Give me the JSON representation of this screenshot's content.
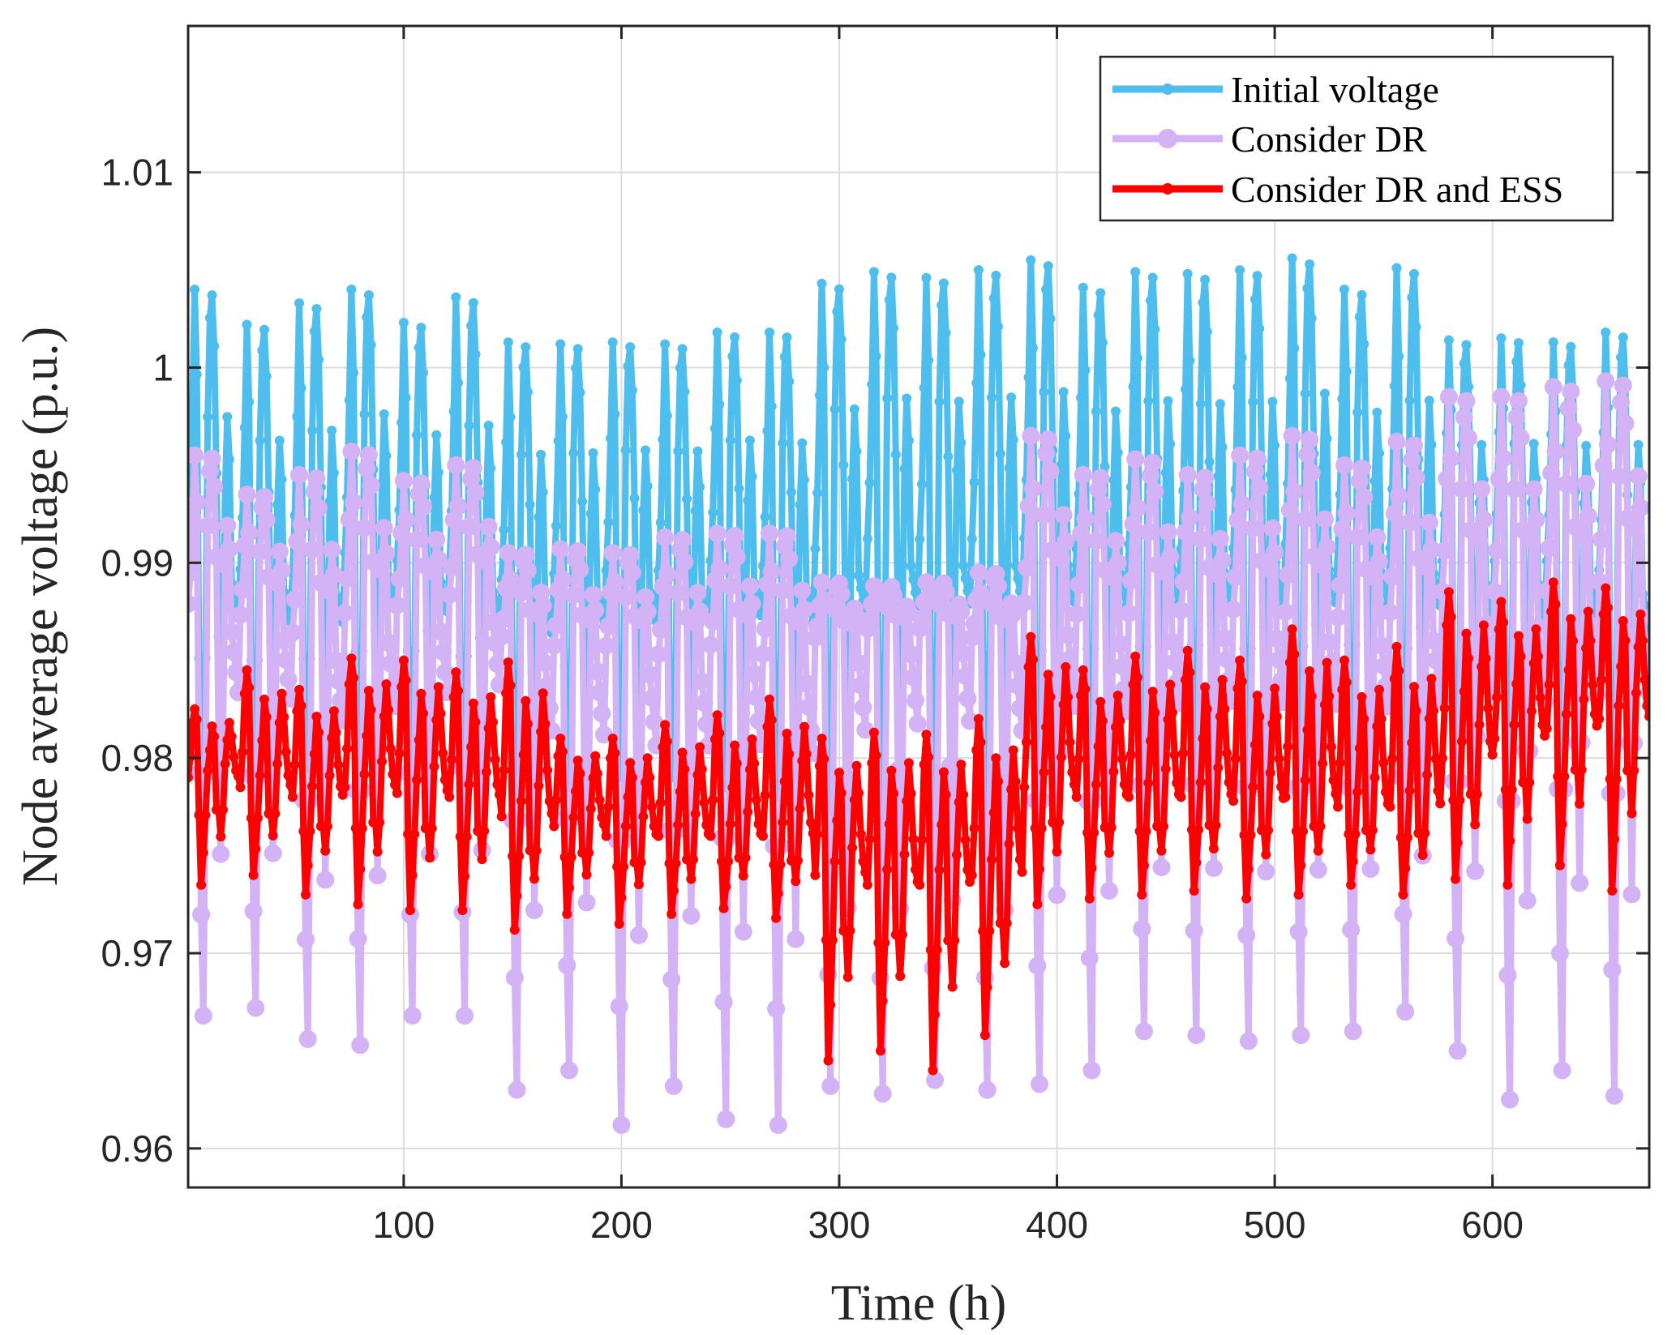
{
  "chart_data": {
    "type": "line",
    "title": "",
    "xlabel": "Time (h)",
    "ylabel": "Node average voltage (p.u.)",
    "xlim": [
      1,
      672
    ],
    "ylim": [
      0.958,
      1.0175
    ],
    "xticks": [
      100,
      200,
      300,
      400,
      500,
      600
    ],
    "xtick_labels": [
      "100",
      "200",
      "300",
      "400",
      "500",
      "600"
    ],
    "yticks": [
      0.96,
      0.97,
      0.98,
      0.99,
      1.0,
      1.01
    ],
    "ytick_labels": [
      "0.96",
      "0.97",
      "0.98",
      "0.99",
      "1",
      "1.01"
    ],
    "grid": true,
    "legend_position": "top-right",
    "period_hours": 24,
    "series": [
      {
        "name": "Initial voltage",
        "color": "#4dbeee",
        "marker": "hexagram",
        "daily_peaks": [
          1.004,
          1.0022,
          1.0033,
          1.004,
          1.0023,
          1.0036,
          1.0013,
          1.0012,
          1.0013,
          1.0012,
          1.0018,
          1.0018,
          1.0043,
          1.0049,
          1.0046,
          1.005,
          1.0055,
          1.0041,
          1.0049,
          1.0048,
          1.005,
          1.0056,
          1.004,
          1.0051,
          1.0014,
          1.0015,
          1.0013,
          1.0018
        ],
        "daily_base": [
          0.9895,
          0.989,
          0.9888,
          0.9898,
          0.9895,
          0.989,
          0.9885,
          0.9888,
          0.989,
          0.989,
          0.9895,
          0.9892,
          0.99,
          0.9905,
          0.9905,
          0.9905,
          0.9905,
          0.99,
          0.9902,
          0.99,
          0.99,
          0.9902,
          0.99,
          0.99,
          0.9895,
          0.9895,
          0.9895,
          0.989
        ],
        "daily_mins": [
          0.9785,
          0.979,
          0.9795,
          0.979,
          0.9795,
          0.9795,
          0.978,
          0.9785,
          0.979,
          0.979,
          0.9785,
          0.978,
          0.977,
          0.977,
          0.9775,
          0.9775,
          0.978,
          0.979,
          0.979,
          0.9795,
          0.979,
          0.979,
          0.9795,
          0.979,
          0.9775,
          0.978,
          0.9775,
          0.977
        ]
      },
      {
        "name": "Consider DR",
        "color": "#d3b3f5",
        "marker": "circle",
        "daily_peaks": [
          0.9955,
          0.9935,
          0.9945,
          0.9957,
          0.9942,
          0.995,
          0.9905,
          0.9907,
          0.9905,
          0.9913,
          0.9915,
          0.9915,
          0.989,
          0.9888,
          0.989,
          0.9895,
          0.9965,
          0.9945,
          0.9953,
          0.9945,
          0.9955,
          0.9965,
          0.995,
          0.9962,
          0.9985,
          0.9985,
          0.999,
          0.9993
        ],
        "daily_base": [
          0.9875,
          0.987,
          0.986,
          0.987,
          0.9875,
          0.988,
          0.986,
          0.9855,
          0.9855,
          0.985,
          0.9855,
          0.985,
          0.986,
          0.9865,
          0.9865,
          0.986,
          0.9875,
          0.987,
          0.987,
          0.9872,
          0.9872,
          0.987,
          0.9868,
          0.987,
          0.988,
          0.988,
          0.988,
          0.9885
        ],
        "daily_mins": [
          0.9668,
          0.9672,
          0.9656,
          0.9653,
          0.9668,
          0.9668,
          0.963,
          0.964,
          0.9612,
          0.9632,
          0.9615,
          0.9612,
          0.9632,
          0.9628,
          0.9635,
          0.963,
          0.9633,
          0.964,
          0.966,
          0.9658,
          0.9655,
          0.9658,
          0.966,
          0.967,
          0.965,
          0.9625,
          0.964,
          0.9627
        ]
      },
      {
        "name": "Consider DR and ESS",
        "color": "#ff0000",
        "marker": "hexagram",
        "daily_peaks": [
          0.9825,
          0.9845,
          0.9835,
          0.9851,
          0.985,
          0.9844,
          0.9849,
          0.981,
          0.981,
          0.9817,
          0.9822,
          0.983,
          0.981,
          0.9813,
          0.9812,
          0.982,
          0.9862,
          0.9845,
          0.9852,
          0.9855,
          0.985,
          0.9866,
          0.985,
          0.9857,
          0.9885,
          0.988,
          0.989,
          0.9887
        ],
        "daily_base": [
          0.979,
          0.9785,
          0.978,
          0.9785,
          0.9782,
          0.978,
          0.977,
          0.9765,
          0.976,
          0.976,
          0.976,
          0.976,
          0.974,
          0.9735,
          0.9735,
          0.974,
          0.9785,
          0.978,
          0.978,
          0.978,
          0.9778,
          0.978,
          0.9775,
          0.9775,
          0.98,
          0.981,
          0.9815,
          0.982
        ],
        "daily_mins": [
          0.9735,
          0.974,
          0.973,
          0.9725,
          0.9722,
          0.9722,
          0.9712,
          0.972,
          0.9715,
          0.972,
          0.9723,
          0.9718,
          0.9645,
          0.965,
          0.964,
          0.9658,
          0.9725,
          0.9728,
          0.973,
          0.9732,
          0.9728,
          0.973,
          0.9735,
          0.973,
          0.9738,
          0.9735,
          0.9745,
          0.9732
        ]
      }
    ]
  }
}
